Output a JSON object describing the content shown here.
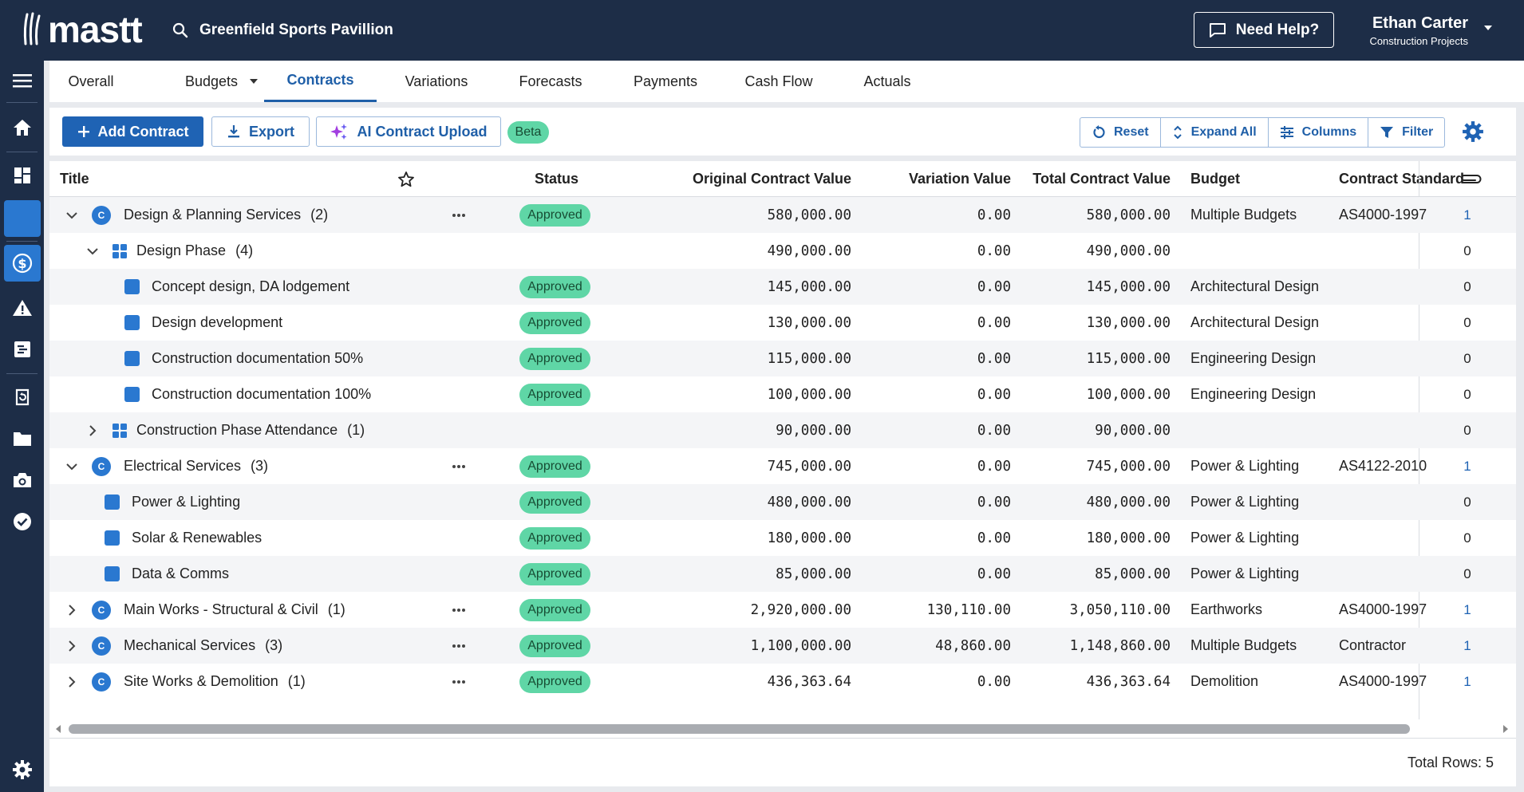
{
  "header": {
    "logo": "mastt",
    "project": "Greenfield Sports Pavillion",
    "help_label": "Need Help?",
    "user_name": "Ethan Carter",
    "user_org": "Construction Projects"
  },
  "sidebar": {
    "items": [
      "menu",
      "home",
      "dashboard",
      "ai",
      "cost",
      "risk",
      "reports",
      "history",
      "files",
      "photos",
      "tasks",
      "settings"
    ]
  },
  "tabs": [
    {
      "label": "Overall"
    },
    {
      "label": "Budgets"
    },
    {
      "label": "Contracts"
    },
    {
      "label": "Variations"
    },
    {
      "label": "Forecasts"
    },
    {
      "label": "Payments"
    },
    {
      "label": "Cash Flow"
    },
    {
      "label": "Actuals"
    }
  ],
  "toolbar": {
    "add_label": "Add Contract",
    "export_label": "Export",
    "ai_upload_label": "AI Contract Upload",
    "beta_label": "Beta",
    "reset_label": "Reset",
    "expand_label": "Expand All",
    "columns_label": "Columns",
    "filter_label": "Filter"
  },
  "columns": {
    "title": "Title",
    "status": "Status",
    "original": "Original Contract Value",
    "variation": "Variation Value",
    "total": "Total Contract Value",
    "budget": "Budget",
    "standard": "Contract Standard"
  },
  "rows": [
    {
      "title": "Design & Planning Services",
      "count": "(2)",
      "status": "Approved",
      "original": "580,000.00",
      "variation": "0.00",
      "total": "580,000.00",
      "budget": "Multiple Budgets",
      "standard": "AS4000-1997",
      "attachments": "1"
    },
    {
      "title": "Design Phase",
      "count": "(4)",
      "status": "",
      "original": "490,000.00",
      "variation": "0.00",
      "total": "490,000.00",
      "budget": "",
      "standard": "",
      "attachments": "0"
    },
    {
      "title": "Concept design, DA lodgement",
      "count": "",
      "status": "Approved",
      "original": "145,000.00",
      "variation": "0.00",
      "total": "145,000.00",
      "budget": "Architectural Design",
      "standard": "",
      "attachments": "0"
    },
    {
      "title": "Design development",
      "count": "",
      "status": "Approved",
      "original": "130,000.00",
      "variation": "0.00",
      "total": "130,000.00",
      "budget": "Architectural Design",
      "standard": "",
      "attachments": "0"
    },
    {
      "title": "Construction documentation 50%",
      "count": "",
      "status": "Approved",
      "original": "115,000.00",
      "variation": "0.00",
      "total": "115,000.00",
      "budget": "Engineering Design",
      "standard": "",
      "attachments": "0"
    },
    {
      "title": "Construction documentation 100%",
      "count": "",
      "status": "Approved",
      "original": "100,000.00",
      "variation": "0.00",
      "total": "100,000.00",
      "budget": "Engineering Design",
      "standard": "",
      "attachments": "0"
    },
    {
      "title": "Construction Phase Attendance",
      "count": "(1)",
      "status": "",
      "original": "90,000.00",
      "variation": "0.00",
      "total": "90,000.00",
      "budget": "",
      "standard": "",
      "attachments": "0"
    },
    {
      "title": "Electrical Services",
      "count": "(3)",
      "status": "Approved",
      "original": "745,000.00",
      "variation": "0.00",
      "total": "745,000.00",
      "budget": "Power & Lighting",
      "standard": "AS4122-2010",
      "attachments": "1"
    },
    {
      "title": "Power & Lighting",
      "count": "",
      "status": "Approved",
      "original": "480,000.00",
      "variation": "0.00",
      "total": "480,000.00",
      "budget": "Power & Lighting",
      "standard": "",
      "attachments": "0"
    },
    {
      "title": "Solar & Renewables",
      "count": "",
      "status": "Approved",
      "original": "180,000.00",
      "variation": "0.00",
      "total": "180,000.00",
      "budget": "Power & Lighting",
      "standard": "",
      "attachments": "0"
    },
    {
      "title": "Data & Comms",
      "count": "",
      "status": "Approved",
      "original": "85,000.00",
      "variation": "0.00",
      "total": "85,000.00",
      "budget": "Power & Lighting",
      "standard": "",
      "attachments": "0"
    },
    {
      "title": "Main Works - Structural & Civil",
      "count": "(1)",
      "status": "Approved",
      "original": "2,920,000.00",
      "variation": "130,110.00",
      "total": "3,050,110.00",
      "budget": "Earthworks",
      "standard": "AS4000-1997",
      "attachments": "1"
    },
    {
      "title": "Mechanical Services",
      "count": "(3)",
      "status": "Approved",
      "original": "1,100,000.00",
      "variation": "48,860.00",
      "total": "1,148,860.00",
      "budget": "Multiple Budgets",
      "standard": "Contractor",
      "attachments": "1"
    },
    {
      "title": "Site Works & Demolition",
      "count": "(1)",
      "status": "Approved",
      "original": "436,363.64",
      "variation": "0.00",
      "total": "436,363.64",
      "budget": "Demolition",
      "standard": "AS4000-1997",
      "attachments": "1"
    }
  ],
  "footer": {
    "total_rows": "Total Rows: 5"
  },
  "colors": {
    "navy": "#1d2d47",
    "primary": "#1f63b4",
    "accent": "#2a78d0",
    "approved": "#5fd6a6"
  }
}
